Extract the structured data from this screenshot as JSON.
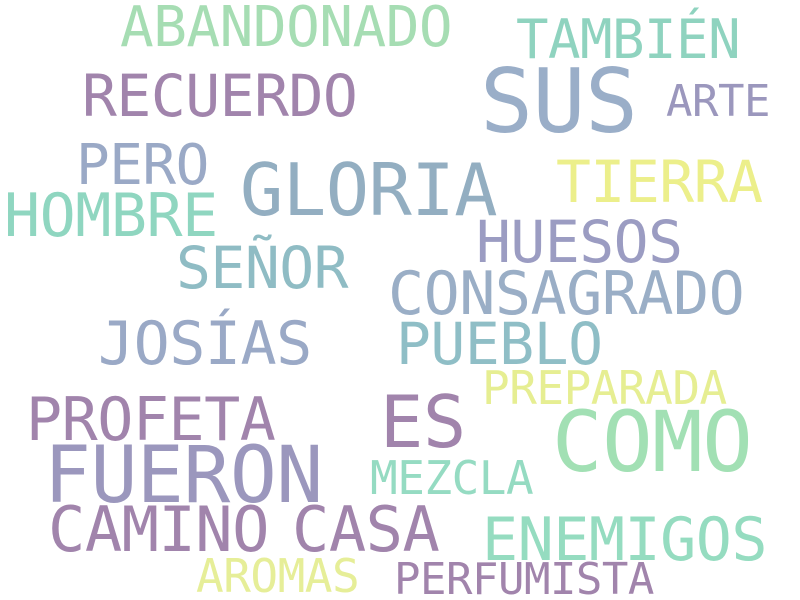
{
  "words": [
    {
      "text": "ABANDONADO",
      "color": "#a6ddb3"
    },
    {
      "text": "TAMBIÉN",
      "color": "#8fd3bf"
    },
    {
      "text": "SUS",
      "color": "#9aaec8"
    },
    {
      "text": "RECUERDO",
      "color": "#a184ac"
    },
    {
      "text": "ARTE",
      "color": "#9b97bd"
    },
    {
      "text": "PERO",
      "color": "#9aa9c6"
    },
    {
      "text": "GLORIA",
      "color": "#93aec1"
    },
    {
      "text": "TIERRA",
      "color": "#ecef8b"
    },
    {
      "text": "HOMBRE",
      "color": "#8fd6c0"
    },
    {
      "text": "HUESOS",
      "color": "#9b9cc2"
    },
    {
      "text": "SEÑOR",
      "color": "#8fbcc4"
    },
    {
      "text": "CONSAGRADO",
      "color": "#9aaec6"
    },
    {
      "text": "JOSÍAS",
      "color": "#9aa9c6"
    },
    {
      "text": "PUEBLO",
      "color": "#8fbec6"
    },
    {
      "text": "PREPARADA",
      "color": "#e6ee92"
    },
    {
      "text": "PROFETA",
      "color": "#a184ac"
    },
    {
      "text": "ES",
      "color": "#a184ac"
    },
    {
      "text": "COMO",
      "color": "#a2e0b4"
    },
    {
      "text": "FUERON",
      "color": "#9b97bd"
    },
    {
      "text": "MEZCLA",
      "color": "#95dbc2"
    },
    {
      "text": "CAMINO",
      "color": "#a184ac"
    },
    {
      "text": "CASA",
      "color": "#a184ac"
    },
    {
      "text": "ENEMIGOS",
      "color": "#95dcc0"
    },
    {
      "text": "AROMAS",
      "color": "#e6ee98"
    },
    {
      "text": "PERFUMISTA",
      "color": "#a184ac"
    }
  ]
}
